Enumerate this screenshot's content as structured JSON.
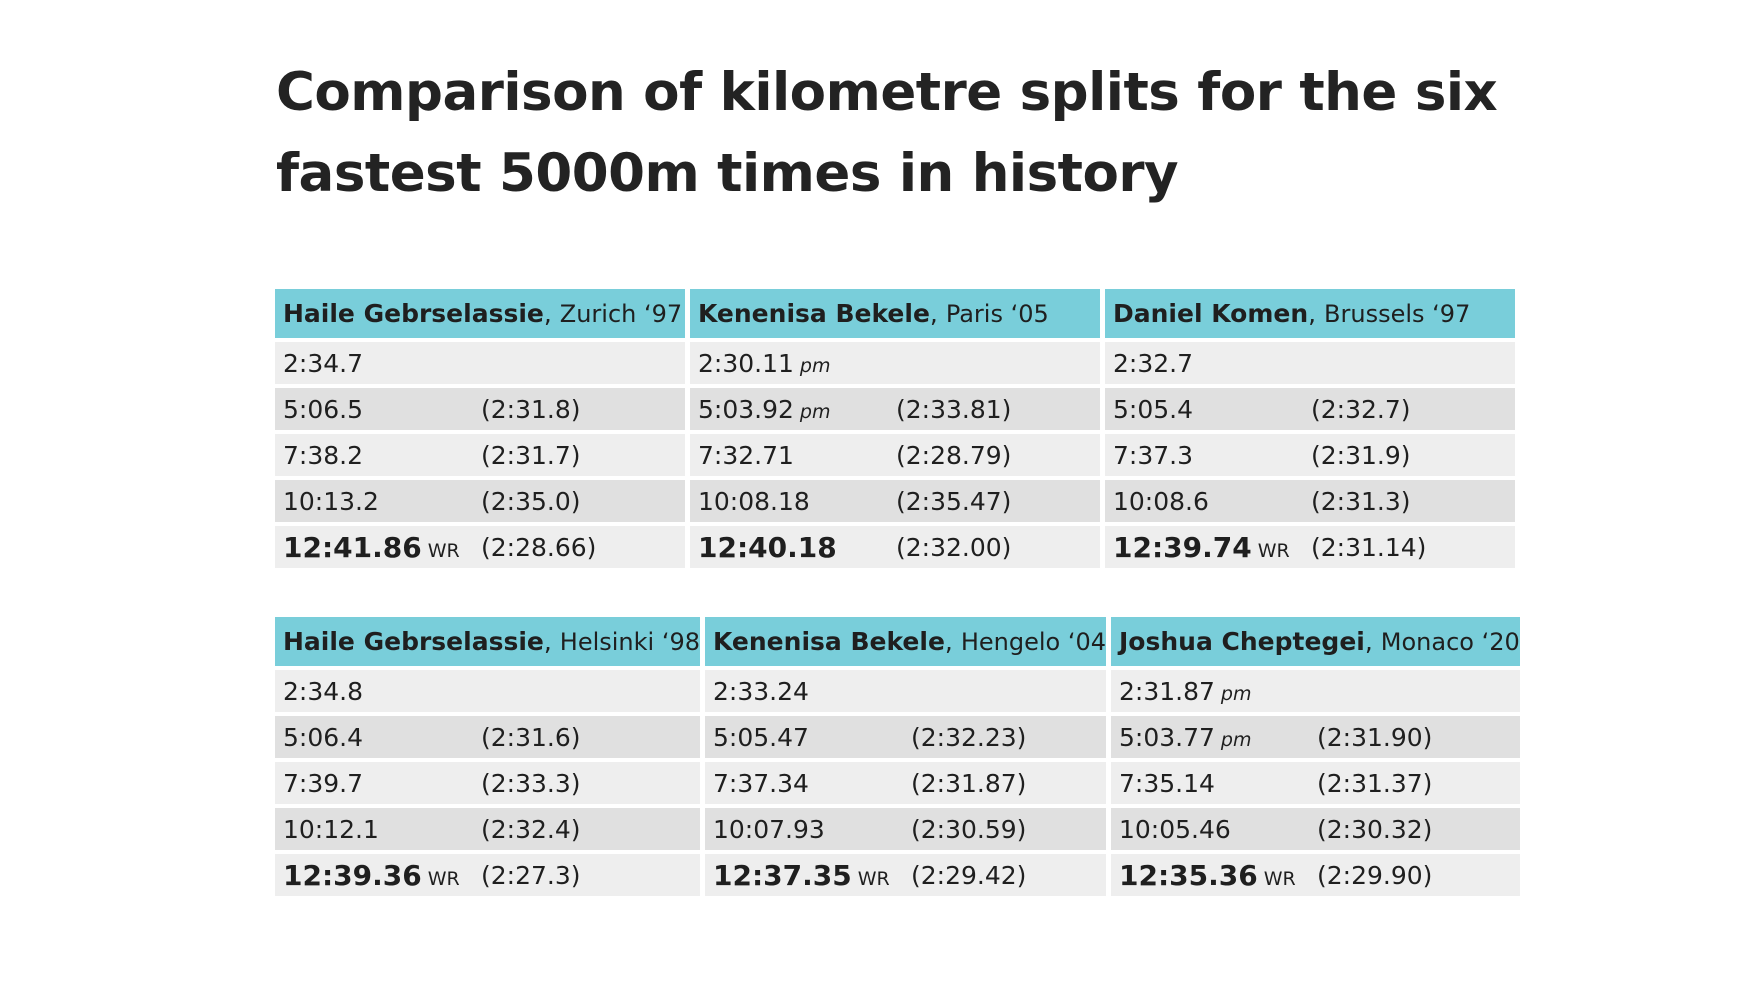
{
  "title": "Comparison of kilometre splits for the six fastest 5000m times in history",
  "groups": [
    {
      "blocks": [
        {
          "athlete": "Haile Gebrselassie",
          "meet": "Zurich ‘97",
          "rows": [
            {
              "time": "2:34.7",
              "tag": "",
              "split": ""
            },
            {
              "time": "5:06.5",
              "tag": "",
              "split": "(2:31.8)"
            },
            {
              "time": "7:38.2",
              "tag": "",
              "split": "(2:31.7)"
            },
            {
              "time": "10:13.2",
              "tag": "",
              "split": "(2:35.0)"
            },
            {
              "time": "12:41.86",
              "tag": "WR",
              "split": "(2:28.66)"
            }
          ]
        },
        {
          "athlete": "Kenenisa Bekele",
          "meet": "Paris ‘05",
          "rows": [
            {
              "time": "2:30.11",
              "tag": "pm",
              "split": ""
            },
            {
              "time": "5:03.92",
              "tag": "pm",
              "split": "(2:33.81)"
            },
            {
              "time": "7:32.71",
              "tag": "",
              "split": "(2:28.79)"
            },
            {
              "time": "10:08.18",
              "tag": "",
              "split": "(2:35.47)"
            },
            {
              "time": "12:40.18",
              "tag": "",
              "split": "(2:32.00)"
            }
          ]
        },
        {
          "athlete": "Daniel Komen",
          "meet": "Brussels ‘97",
          "rows": [
            {
              "time": "2:32.7",
              "tag": "",
              "split": ""
            },
            {
              "time": "5:05.4",
              "tag": "",
              "split": "(2:32.7)"
            },
            {
              "time": "7:37.3",
              "tag": "",
              "split": "(2:31.9)"
            },
            {
              "time": "10:08.6",
              "tag": "",
              "split": "(2:31.3)"
            },
            {
              "time": "12:39.74",
              "tag": "WR",
              "split": "(2:31.14)"
            }
          ]
        }
      ]
    },
    {
      "blocks": [
        {
          "athlete": "Haile Gebrselassie",
          "meet": "Helsinki ‘98",
          "rows": [
            {
              "time": "2:34.8",
              "tag": "",
              "split": ""
            },
            {
              "time": "5:06.4",
              "tag": "",
              "split": "(2:31.6)"
            },
            {
              "time": "7:39.7",
              "tag": "",
              "split": "(2:33.3)"
            },
            {
              "time": "10:12.1",
              "tag": "",
              "split": "(2:32.4)"
            },
            {
              "time": "12:39.36",
              "tag": "WR",
              "split": "(2:27.3)"
            }
          ]
        },
        {
          "athlete": "Kenenisa Bekele",
          "meet": "Hengelo ‘04",
          "rows": [
            {
              "time": "2:33.24",
              "tag": "",
              "split": ""
            },
            {
              "time": "5:05.47",
              "tag": "",
              "split": "(2:32.23)"
            },
            {
              "time": "7:37.34",
              "tag": "",
              "split": "(2:31.87)"
            },
            {
              "time": "10:07.93",
              "tag": "",
              "split": "(2:30.59)"
            },
            {
              "time": "12:37.35",
              "tag": "WR",
              "split": "(2:29.42)"
            }
          ]
        },
        {
          "athlete": "Joshua Cheptegei",
          "meet": "Monaco ‘20",
          "rows": [
            {
              "time": "2:31.87",
              "tag": "pm",
              "split": ""
            },
            {
              "time": "5:03.77",
              "tag": "pm",
              "split": "(2:31.90)"
            },
            {
              "time": "7:35.14",
              "tag": "",
              "split": "(2:31.37)"
            },
            {
              "time": "10:05.46",
              "tag": "",
              "split": "(2:30.32)"
            },
            {
              "time": "12:35.36",
              "tag": "WR",
              "split": "(2:29.90)"
            }
          ]
        }
      ]
    }
  ],
  "colors": {
    "header_bg": "#79ceda",
    "row_light": "#eeeeee",
    "row_dark": "#e0e0e0",
    "text": "#1f1f1f"
  }
}
